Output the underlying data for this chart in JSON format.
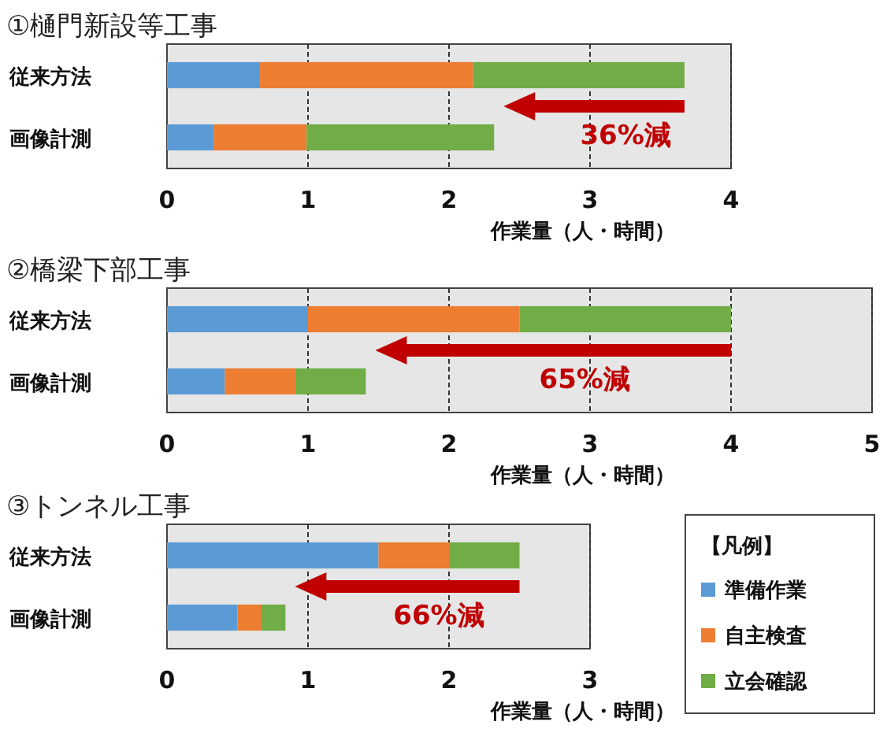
{
  "chart_data": [
    {
      "type": "bar",
      "orientation": "horizontal",
      "stacked": true,
      "title": "①樋門新設等工事",
      "xlabel": "作業量（人・時間）",
      "categories": [
        "従来方法",
        "画像計測"
      ],
      "series": [
        {
          "color": "#5b9bd5",
          "values": [
            0.66,
            0.33
          ]
        },
        {
          "color": "#ed7d31",
          "values": [
            1.51,
            0.66
          ]
        },
        {
          "color": "#70ad47",
          "values": [
            1.5,
            1.33
          ]
        }
      ],
      "xlim": [
        0,
        4
      ],
      "xticks": [
        0,
        1,
        2,
        3,
        4
      ],
      "grid": "x",
      "annotations": [
        "36%減"
      ]
    },
    {
      "type": "bar",
      "orientation": "horizontal",
      "stacked": true,
      "title": "②橋梁下部工事",
      "xlabel": "作業量（人・時間）",
      "categories": [
        "従来方法",
        "画像計測"
      ],
      "series": [
        {
          "color": "#5b9bd5",
          "values": [
            1.0,
            0.41
          ]
        },
        {
          "color": "#ed7d31",
          "values": [
            1.5,
            0.5
          ]
        },
        {
          "color": "#70ad47",
          "values": [
            1.5,
            0.5
          ]
        }
      ],
      "xlim": [
        0,
        5
      ],
      "xticks": [
        0,
        1,
        2,
        3,
        4,
        5
      ],
      "grid": "x",
      "annotations": [
        "65%減"
      ]
    },
    {
      "type": "bar",
      "orientation": "horizontal",
      "stacked": true,
      "title": "③トンネル工事",
      "xlabel": "作業量（人・時間）",
      "categories": [
        "従来方法",
        "画像計測"
      ],
      "series": [
        {
          "name": "準備作業",
          "color": "#5b9bd5",
          "values": [
            1.5,
            0.5
          ]
        },
        {
          "name": "自主検査",
          "color": "#ed7d31",
          "values": [
            0.5,
            0.17
          ]
        },
        {
          "name": "立会確認",
          "color": "#70ad47",
          "values": [
            0.5,
            0.17
          ]
        }
      ],
      "xlim": [
        0,
        3
      ],
      "xticks": [
        0,
        1,
        2,
        3
      ],
      "grid": "x",
      "legend": "right",
      "legend_title": "【凡例】",
      "annotations": [
        "66%減"
      ]
    }
  ]
}
